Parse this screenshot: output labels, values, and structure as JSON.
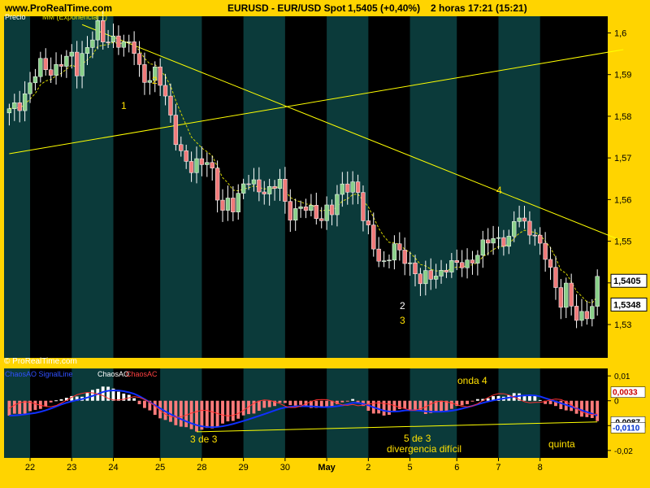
{
  "header": {
    "site": "www.ProRealTime.com",
    "instrument": "EURUSD - EUR/USD Spot",
    "last": "1,5405 (+0,40%)",
    "timeframe": "2 horas 17:21 (15:21)"
  },
  "legend": {
    "precio": "Precio",
    "mm": "MM (Exponencial 7)"
  },
  "copyright": "© ProRealTime.com",
  "indicator_legend": {
    "a": "ChaosAO SignalLine",
    "b": "ChaosAO",
    "c": "ChaosAC"
  },
  "annotations": {
    "w1": "1",
    "w2": "2",
    "w23a": "2",
    "w23b": "3",
    "w4": "4",
    "osc_3de3": "3 de 3",
    "osc_onda4": "onda 4",
    "osc_5de3": "5 de 3",
    "osc_div": "divergencia difícil",
    "osc_quinta": "quinta"
  },
  "colors": {
    "frame": "#ffd400",
    "panel": "#000000",
    "band": "#0b3a3a",
    "trendline": "#ffff00",
    "ema": "#d7d700",
    "up": "#8ad08a",
    "down": "#f07a7a",
    "osc_pos": "#ffffff",
    "osc_neg": "#ff7b7b",
    "osc_signal": "#1030ff",
    "osc_ac": "#ff3030",
    "price_tag": "#ffffff",
    "price_tag2": "#ffffff"
  },
  "chart_data": {
    "type": "candlestick",
    "xlabels": [
      "22",
      "23",
      "24",
      "25",
      "28",
      "29",
      "30",
      "May",
      "2",
      "5",
      "6",
      "7",
      "8"
    ],
    "ylim": [
      1.522,
      1.604
    ],
    "yticks": [
      "1,6",
      "1,59",
      "1,58",
      "1,57",
      "1,56",
      "1,55",
      "1,54",
      "1,53"
    ],
    "ytick_values": [
      1.6,
      1.59,
      1.58,
      1.57,
      1.56,
      1.55,
      1.54,
      1.53
    ],
    "price_tags": [
      {
        "label": "1,5405",
        "value": 1.5405
      },
      {
        "label": "1,5348",
        "value": 1.5348
      }
    ],
    "close_path": [
      [
        0,
        1.581
      ],
      [
        2,
        1.583
      ],
      [
        4,
        1.588
      ],
      [
        6,
        1.592
      ],
      [
        8,
        1.591
      ],
      [
        10,
        1.593
      ],
      [
        12,
        1.594
      ],
      [
        13,
        1.591
      ],
      [
        14,
        1.595
      ],
      [
        16,
        1.599
      ],
      [
        17,
        1.601
      ],
      [
        18,
        1.598
      ],
      [
        20,
        1.599
      ],
      [
        22,
        1.597
      ],
      [
        24,
        1.596
      ],
      [
        25,
        1.592
      ],
      [
        26,
        1.589
      ],
      [
        28,
        1.59
      ],
      [
        30,
        1.585
      ],
      [
        31,
        1.58
      ],
      [
        32,
        1.575
      ],
      [
        33,
        1.571
      ],
      [
        34,
        1.568
      ],
      [
        35,
        1.567
      ],
      [
        36,
        1.569
      ],
      [
        38,
        1.57
      ],
      [
        39,
        1.566
      ],
      [
        40,
        1.56
      ],
      [
        41,
        1.557
      ],
      [
        42,
        1.56
      ],
      [
        43,
        1.559
      ],
      [
        44,
        1.561
      ],
      [
        45,
        1.563
      ],
      [
        46,
        1.564
      ],
      [
        48,
        1.563
      ],
      [
        50,
        1.562
      ],
      [
        52,
        1.564
      ],
      [
        53,
        1.559
      ],
      [
        54,
        1.557
      ],
      [
        56,
        1.558
      ],
      [
        58,
        1.557
      ],
      [
        60,
        1.556
      ],
      [
        61,
        1.558
      ],
      [
        62,
        1.557
      ],
      [
        63,
        1.56
      ],
      [
        64,
        1.563
      ],
      [
        66,
        1.564
      ],
      [
        67,
        1.562
      ],
      [
        68,
        1.555
      ],
      [
        69,
        1.552
      ],
      [
        70,
        1.549
      ],
      [
        71,
        1.546
      ],
      [
        72,
        1.545
      ],
      [
        74,
        1.548
      ],
      [
        76,
        1.546
      ],
      [
        78,
        1.543
      ],
      [
        79,
        1.54
      ],
      [
        80,
        1.541
      ],
      [
        82,
        1.542
      ],
      [
        84,
        1.544
      ],
      [
        86,
        1.544
      ],
      [
        88,
        1.545
      ],
      [
        90,
        1.547
      ],
      [
        92,
        1.55
      ],
      [
        94,
        1.551
      ],
      [
        96,
        1.55
      ],
      [
        97,
        1.554
      ],
      [
        98,
        1.556
      ],
      [
        99,
        1.554
      ],
      [
        100,
        1.553
      ],
      [
        101,
        1.552
      ],
      [
        102,
        1.548
      ],
      [
        103,
        1.546
      ],
      [
        104,
        1.543
      ],
      [
        105,
        1.539
      ],
      [
        106,
        1.536
      ],
      [
        107,
        1.539
      ],
      [
        108,
        1.534
      ],
      [
        109,
        1.531
      ],
      [
        110,
        1.532
      ],
      [
        111,
        1.533
      ],
      [
        112,
        1.535
      ],
      [
        113,
        1.5405
      ]
    ],
    "bar_count": 114,
    "trendlines": [
      {
        "name": "down",
        "from": [
          14,
          1.602
        ],
        "to": [
          118,
          1.55
        ]
      },
      {
        "name": "up",
        "from": [
          0,
          1.571
        ],
        "to": [
          118,
          1.596
        ]
      }
    ],
    "oscillator": {
      "ylim": [
        -0.023,
        0.013
      ],
      "yticks": [
        "0,01",
        "0",
        "-0,01",
        "-0,02"
      ],
      "ytick_values": [
        0.01,
        0,
        -0.01,
        -0.02
      ],
      "tags": [
        "0,0033",
        "0",
        "-0,0087",
        "-0,0110"
      ],
      "hist_path": [
        [
          0,
          -0.006
        ],
        [
          5,
          -0.004
        ],
        [
          8,
          -0.001
        ],
        [
          10,
          0.001
        ],
        [
          14,
          0.002
        ],
        [
          18,
          0.006
        ],
        [
          21,
          0.004
        ],
        [
          24,
          0.001
        ],
        [
          26,
          -0.003
        ],
        [
          30,
          -0.008
        ],
        [
          34,
          -0.011
        ],
        [
          36,
          -0.012
        ],
        [
          39,
          -0.011
        ],
        [
          44,
          -0.007
        ],
        [
          48,
          -0.004
        ],
        [
          52,
          -0.001
        ],
        [
          56,
          -0.002
        ],
        [
          60,
          -0.003
        ],
        [
          64,
          -0.001
        ],
        [
          66,
          0.001
        ],
        [
          67,
          -0.001
        ],
        [
          70,
          -0.005
        ],
        [
          72,
          -0.006
        ],
        [
          76,
          -0.003
        ],
        [
          80,
          -0.005
        ],
        [
          84,
          -0.004
        ],
        [
          88,
          -0.001
        ],
        [
          91,
          0.001
        ],
        [
          95,
          0.002
        ],
        [
          98,
          0.003
        ],
        [
          101,
          0.002
        ],
        [
          103,
          -0.001
        ],
        [
          106,
          -0.003
        ],
        [
          110,
          -0.006
        ],
        [
          113,
          -0.008
        ]
      ],
      "support_line": {
        "from": [
          36,
          -0.0125
        ],
        "to": [
          113,
          -0.0085
        ]
      }
    }
  }
}
